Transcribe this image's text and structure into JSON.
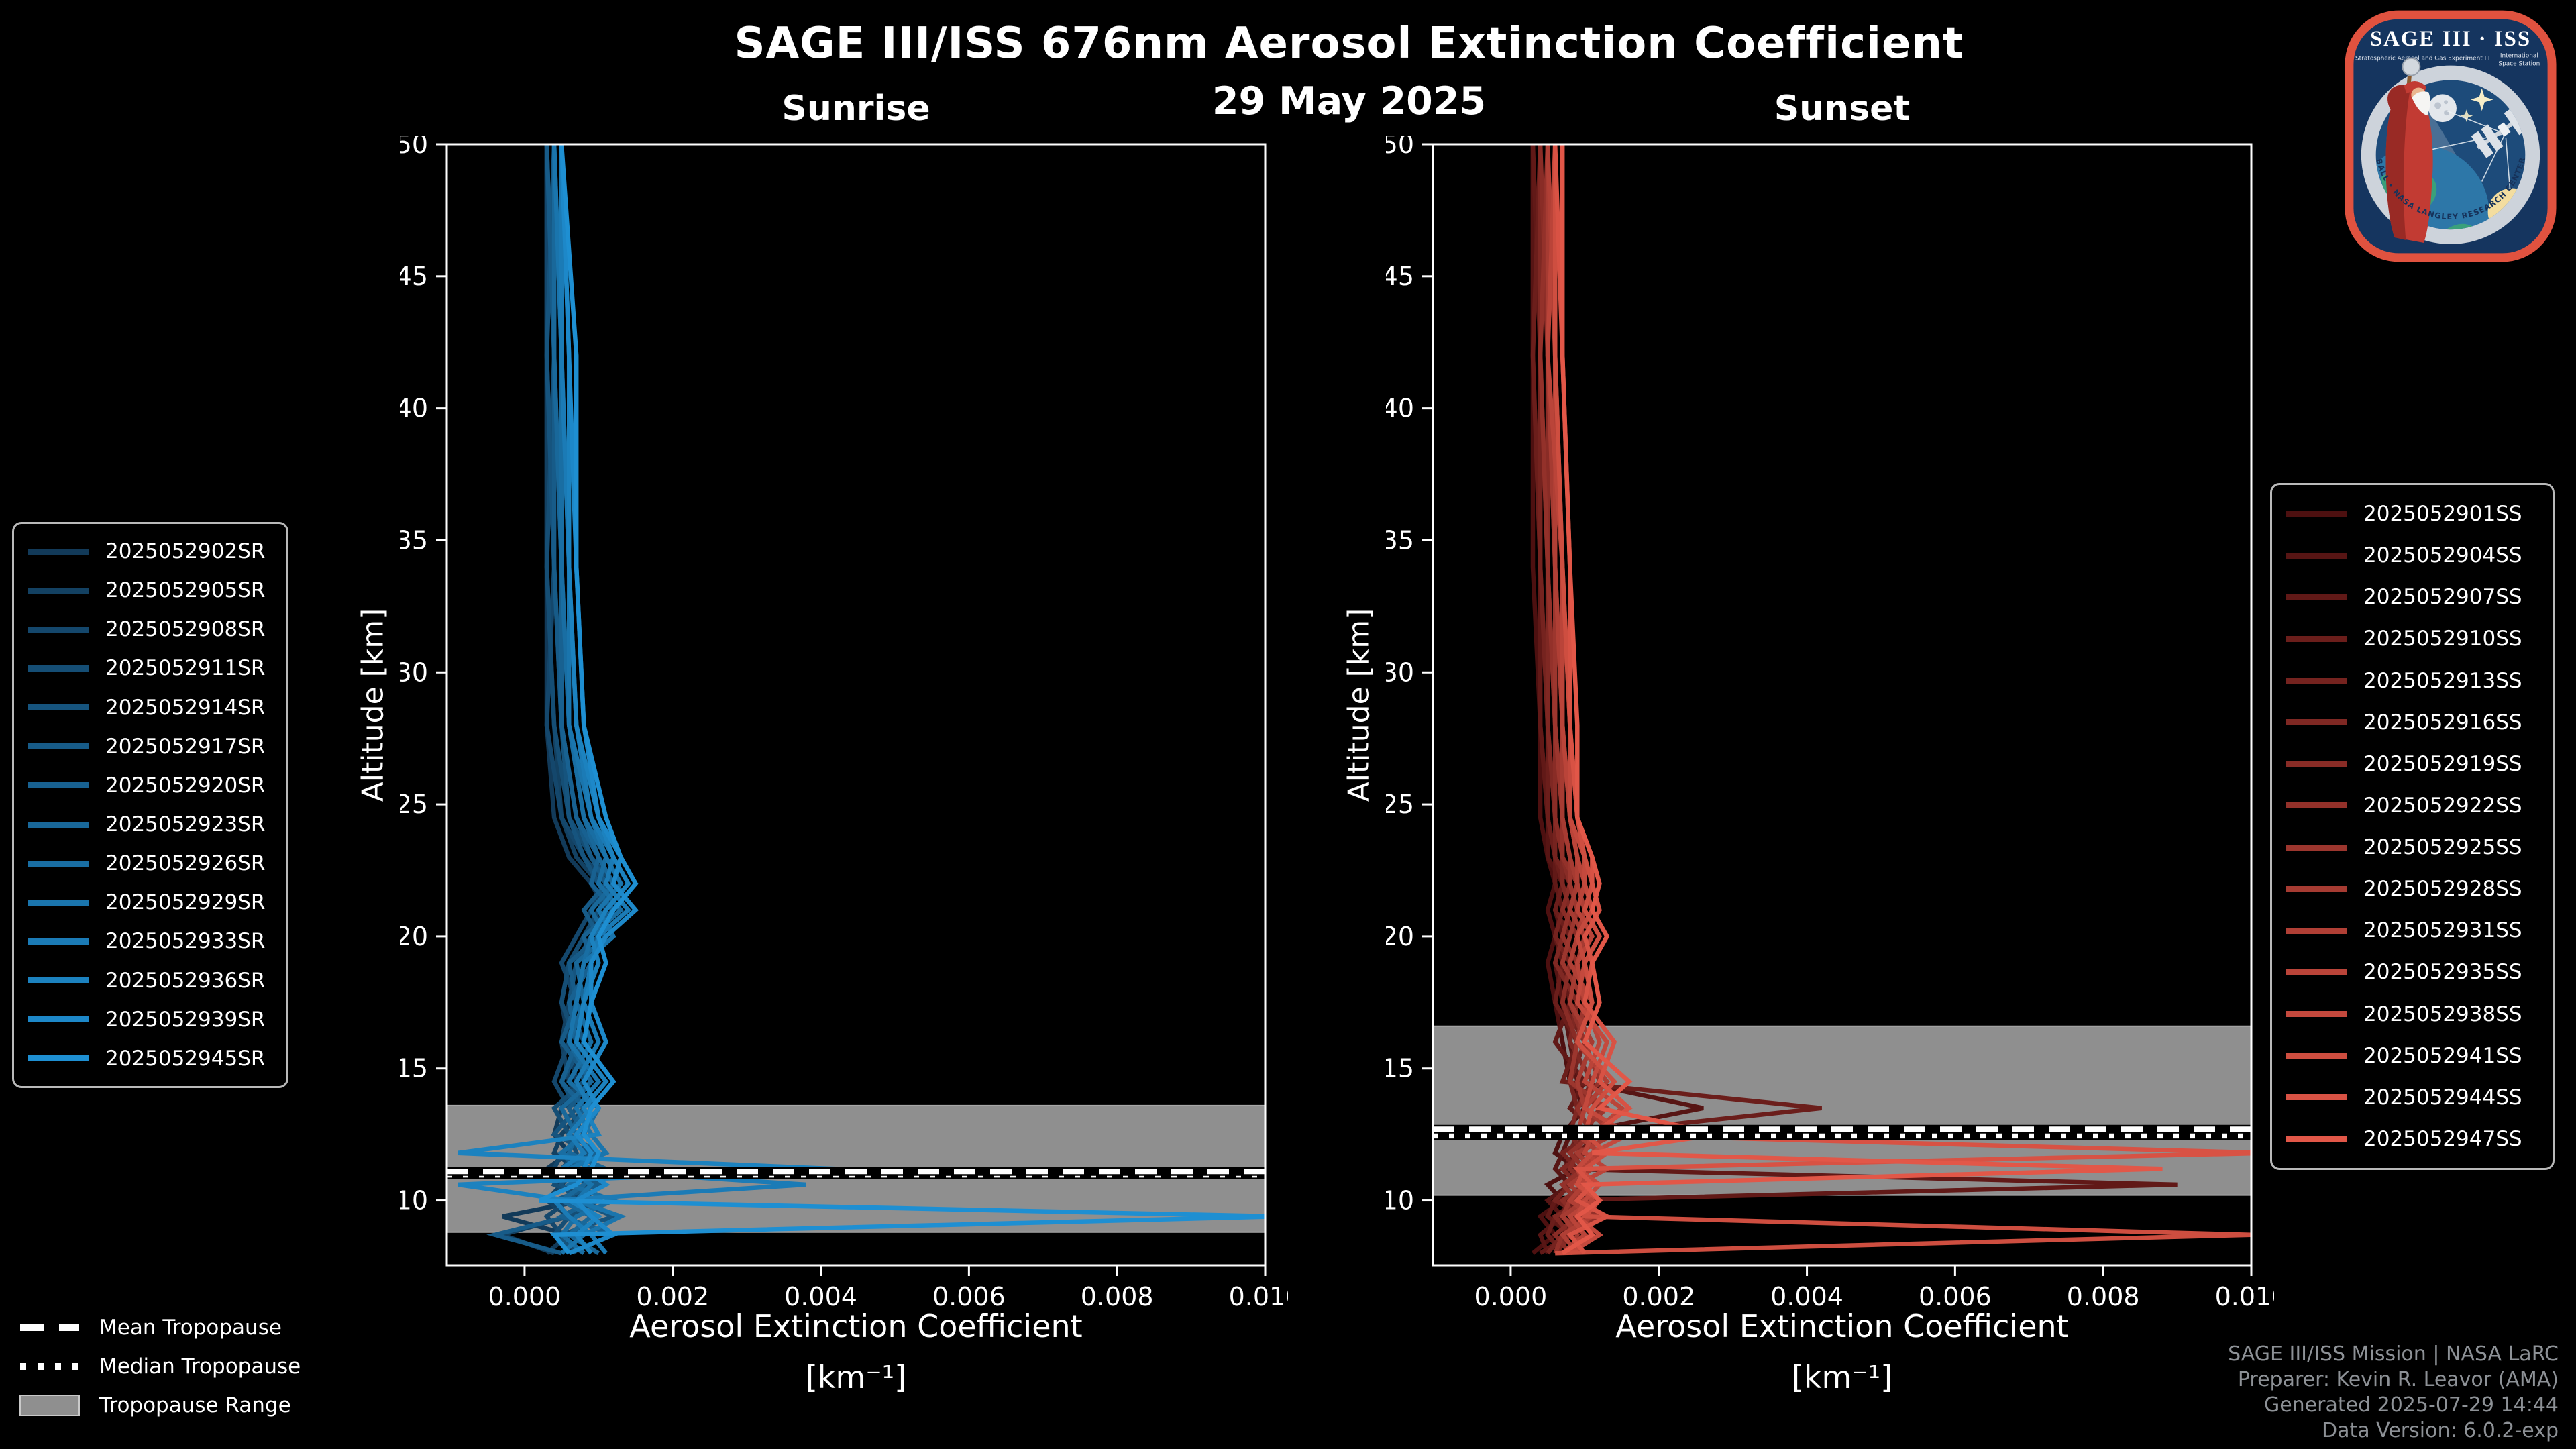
{
  "title": "SAGE III/ISS 676nm Aerosol Extinction Coefficient",
  "date_label": "29 May 2025",
  "colors": {
    "background": "#000000",
    "frame": "#ffffff",
    "tick": "#ffffff",
    "tick_label": "#ffffff",
    "band": "#8f8f8f",
    "band_edge": "#a8a8a8",
    "tropopause_line": "#ffffff",
    "tropopause_line_under": "#000000",
    "band_legend_fill": "#8f8f8f",
    "band_legend_edge": "#c9c9c9",
    "legend_border": "#b9b9b9",
    "footer_text": "#8d9196",
    "patch_border": "#e0523f",
    "patch_bg": "#15355f"
  },
  "chart_data": [
    {
      "type": "line",
      "panel": "sunrise",
      "subtitle": "Sunrise",
      "xlabel": "Aerosol Extinction Coefficient",
      "xlabel_units": "[km⁻¹]",
      "ylabel": "Altitude [km]",
      "xlim": [
        -0.00105,
        0.01
      ],
      "ylim": [
        7.55,
        50
      ],
      "xticks": [
        0,
        0.002,
        0.004,
        0.006,
        0.008,
        0.01
      ],
      "xtick_labels": [
        "0.000",
        "0.002",
        "0.004",
        "0.006",
        "0.008",
        "0.010"
      ],
      "yticks": [
        10,
        15,
        20,
        25,
        30,
        35,
        40,
        45,
        50
      ],
      "ext_units_note": "series ext values are aerosol extinction in units of 1e-4 km^-1 at each alt_nodes altitude",
      "alt_nodes": [
        50,
        42,
        34,
        28,
        24.5,
        23,
        22,
        21,
        20,
        19,
        17.5,
        16,
        14.5,
        13.5,
        12.5,
        11.8,
        11.2,
        10.6,
        10,
        9.4,
        8.7,
        8.0
      ],
      "tropopause": {
        "mean_km": 11.1,
        "median_km": 10.97,
        "range_km": [
          8.8,
          13.6
        ]
      },
      "series": [
        {
          "name": "2025052902SR",
          "color": "#123a59",
          "ext": [
            3,
            3,
            3,
            3,
            4,
            6,
            9,
            11,
            8,
            6,
            5,
            6,
            7,
            5,
            4,
            6,
            3,
            5,
            8,
            -3,
            6,
            3
          ]
        },
        {
          "name": "2025052905SR",
          "color": "#134162",
          "ext": [
            3,
            3,
            3,
            4,
            5,
            7,
            10,
            12,
            9,
            7,
            6,
            5,
            6,
            8,
            5,
            4,
            7,
            5,
            3,
            6,
            -3,
            4
          ]
        },
        {
          "name": "2025052908SR",
          "color": "#14476c",
          "ext": [
            3,
            3,
            4,
            3,
            5,
            8,
            11,
            9,
            7,
            5,
            7,
            6,
            4,
            6,
            8,
            5,
            4,
            9,
            6,
            3,
            5,
            7
          ]
        },
        {
          "name": "2025052911SR",
          "color": "#154e75",
          "ext": [
            3,
            4,
            3,
            4,
            6,
            9,
            12,
            10,
            8,
            6,
            5,
            7,
            8,
            4,
            6,
            7,
            5,
            4,
            10,
            6,
            4,
            8
          ]
        },
        {
          "name": "2025052914SR",
          "color": "#16547e",
          "ext": [
            4,
            3,
            4,
            5,
            6,
            8,
            10,
            13,
            9,
            7,
            6,
            8,
            5,
            7,
            4,
            9,
            6,
            5,
            7,
            12,
            5,
            6
          ]
        },
        {
          "name": "2025052917SR",
          "color": "#175b88",
          "ext": [
            3,
            4,
            4,
            5,
            7,
            9,
            11,
            8,
            10,
            6,
            7,
            5,
            9,
            6,
            8,
            5,
            7,
            10,
            4,
            6,
            -4,
            5
          ]
        },
        {
          "name": "2025052920SR",
          "color": "#186191",
          "ext": [
            4,
            4,
            5,
            5,
            7,
            10,
            9,
            12,
            8,
            9,
            6,
            7,
            5,
            8,
            6,
            10,
            5,
            7,
            9,
            5,
            12,
            6
          ]
        },
        {
          "name": "2025052923SR",
          "color": "#19689a",
          "ext": [
            4,
            4,
            5,
            6,
            8,
            10,
            12,
            9,
            11,
            7,
            8,
            6,
            9,
            5,
            7,
            6,
            11,
            8,
            5,
            9,
            6,
            10
          ]
        },
        {
          "name": "2025052926SR",
          "color": "#196ea3",
          "ext": [
            4,
            5,
            5,
            6,
            8,
            11,
            10,
            13,
            9,
            8,
            7,
            9,
            6,
            10,
            8,
            5,
            9,
            6,
            12,
            7,
            5,
            8
          ]
        },
        {
          "name": "2025052929SR",
          "color": "#1a75ad",
          "ext": [
            4,
            5,
            6,
            6,
            9,
            11,
            13,
            10,
            12,
            8,
            7,
            6,
            10,
            7,
            9,
            11,
            6,
            9,
            7,
            13,
            8,
            5
          ]
        },
        {
          "name": "2025052933SR",
          "color": "#1b7bb6",
          "ext": [
            5,
            5,
            6,
            7,
            9,
            12,
            11,
            14,
            10,
            9,
            8,
            10,
            7,
            9,
            6,
            8,
            5,
            38,
            4,
            6,
            9,
            11
          ]
        },
        {
          "name": "2025052936SR",
          "color": "#1c82bf",
          "ext": [
            5,
            6,
            6,
            7,
            10,
            12,
            14,
            11,
            9,
            10,
            8,
            7,
            11,
            8,
            10,
            -9,
            42,
            -9,
            6,
            10,
            7,
            9
          ]
        },
        {
          "name": "2025052939SR",
          "color": "#1d88c9",
          "ext": [
            5,
            6,
            7,
            8,
            10,
            13,
            12,
            15,
            11,
            9,
            9,
            11,
            8,
            10,
            7,
            9,
            8,
            11,
            7,
            9,
            12,
            6
          ]
        },
        {
          "name": "2025052945SR",
          "color": "#1e8fd2",
          "ext": [
            5,
            7,
            7,
            8,
            11,
            13,
            15,
            12,
            10,
            11,
            9,
            8,
            12,
            9,
            8,
            10,
            9,
            7,
            2,
            102,
            4,
            6
          ]
        }
      ]
    },
    {
      "type": "line",
      "panel": "sunset",
      "subtitle": "Sunset",
      "xlabel": "Aerosol Extinction Coefficient",
      "xlabel_units": "[km⁻¹]",
      "ylabel": "Altitude [km]",
      "xlim": [
        -0.00105,
        0.01
      ],
      "ylim": [
        7.55,
        50
      ],
      "xticks": [
        0,
        0.002,
        0.004,
        0.006,
        0.008,
        0.01
      ],
      "xtick_labels": [
        "0.000",
        "0.002",
        "0.004",
        "0.006",
        "0.008",
        "0.010"
      ],
      "yticks": [
        10,
        15,
        20,
        25,
        30,
        35,
        40,
        45,
        50
      ],
      "ext_units_note": "series ext values are aerosol extinction in units of 1e-4 km^-1 at each alt_nodes altitude",
      "alt_nodes": [
        50,
        42,
        34,
        28,
        24.5,
        23,
        22,
        21,
        20,
        19,
        17.5,
        16,
        14.5,
        13.5,
        12.5,
        11.8,
        11.2,
        10.6,
        10,
        9.4,
        8.7,
        8.0
      ],
      "tropopause": {
        "mean_km": 12.7,
        "median_km": 12.45,
        "range_km": [
          10.2,
          16.6
        ]
      },
      "series": [
        {
          "name": "2025052901SS",
          "color": "#4d1010",
          "ext": [
            3,
            3,
            3,
            4,
            4,
            5,
            6,
            5,
            6,
            5,
            6,
            7,
            8,
            10,
            7,
            6,
            9,
            5,
            7,
            4,
            6,
            3
          ]
        },
        {
          "name": "2025052904SS",
          "color": "#571514",
          "ext": [
            3,
            3,
            4,
            4,
            5,
            5,
            7,
            6,
            7,
            6,
            7,
            8,
            9,
            26,
            8,
            7,
            6,
            8,
            5,
            7,
            4,
            5
          ]
        },
        {
          "name": "2025052907SS",
          "color": "#611917",
          "ext": [
            3,
            4,
            4,
            4,
            5,
            6,
            6,
            7,
            6,
            7,
            8,
            6,
            10,
            8,
            12,
            9,
            7,
            90,
            6,
            5,
            8,
            4
          ]
        },
        {
          "name": "2025052910SS",
          "color": "#6b1e1b",
          "ext": [
            4,
            3,
            4,
            5,
            5,
            6,
            7,
            6,
            8,
            7,
            6,
            9,
            7,
            42,
            9,
            8,
            10,
            7,
            9,
            6,
            5,
            7
          ]
        },
        {
          "name": "2025052913SS",
          "color": "#75231f",
          "ext": [
            4,
            4,
            4,
            5,
            6,
            6,
            8,
            7,
            6,
            8,
            7,
            10,
            8,
            9,
            11,
            7,
            9,
            8,
            6,
            10,
            7,
            5
          ]
        },
        {
          "name": "2025052916SS",
          "color": "#7f2823",
          "ext": [
            4,
            4,
            5,
            5,
            6,
            7,
            7,
            8,
            7,
            6,
            9,
            8,
            11,
            9,
            8,
            10,
            7,
            9,
            11,
            6,
            8,
            6
          ]
        },
        {
          "name": "2025052919SS",
          "color": "#892c26",
          "ext": [
            4,
            5,
            5,
            6,
            6,
            7,
            8,
            7,
            9,
            8,
            7,
            9,
            8,
            12,
            10,
            9,
            8,
            10,
            7,
            9,
            6,
            8
          ]
        },
        {
          "name": "2025052922SS",
          "color": "#93312a",
          "ext": [
            5,
            4,
            5,
            6,
            7,
            7,
            9,
            8,
            7,
            9,
            8,
            10,
            12,
            9,
            11,
            8,
            10,
            7,
            9,
            12,
            7,
            6
          ]
        },
        {
          "name": "2025052925SS",
          "color": "#9c362e",
          "ext": [
            5,
            5,
            6,
            6,
            7,
            8,
            8,
            9,
            8,
            7,
            10,
            9,
            8,
            13,
            9,
            12,
            9,
            11,
            8,
            7,
            10,
            7
          ]
        },
        {
          "name": "2025052928SS",
          "color": "#a63b32",
          "ext": [
            5,
            5,
            6,
            7,
            7,
            8,
            9,
            8,
            10,
            9,
            8,
            11,
            9,
            10,
            14,
            9,
            11,
            8,
            10,
            7,
            9,
            8
          ]
        },
        {
          "name": "2025052931SS",
          "color": "#b03f35",
          "ext": [
            5,
            6,
            6,
            7,
            8,
            9,
            9,
            10,
            9,
            8,
            11,
            9,
            13,
            10,
            9,
            12,
            9,
            10,
            8,
            11,
            7,
            9
          ]
        },
        {
          "name": "2025052935SS",
          "color": "#ba4439",
          "ext": [
            6,
            5,
            7,
            7,
            8,
            9,
            10,
            9,
            11,
            9,
            10,
            12,
            10,
            15,
            11,
            10,
            13,
            9,
            11,
            8,
            10,
            7
          ]
        },
        {
          "name": "2025052938SS",
          "color": "#c4493d",
          "ext": [
            6,
            6,
            7,
            8,
            8,
            10,
            10,
            11,
            9,
            10,
            9,
            13,
            11,
            10,
            16,
            11,
            9,
            12,
            10,
            9,
            12,
            8
          ]
        },
        {
          "name": "2025052941SS",
          "color": "#ce4e40",
          "ext": [
            6,
            6,
            7,
            8,
            9,
            10,
            11,
            10,
            12,
            10,
            11,
            9,
            14,
            11,
            10,
            13,
            10,
            9,
            12,
            10,
            100,
            6
          ]
        },
        {
          "name": "2025052944SS",
          "color": "#d85244",
          "ext": [
            6,
            7,
            8,
            8,
            9,
            11,
            11,
            12,
            10,
            11,
            10,
            14,
            12,
            16,
            11,
            102,
            9,
            11,
            9,
            13,
            8,
            10
          ]
        },
        {
          "name": "2025052947SS",
          "color": "#e25748",
          "ext": [
            7,
            7,
            8,
            9,
            9,
            11,
            12,
            11,
            13,
            11,
            12,
            10,
            16,
            12,
            28,
            11,
            88,
            10,
            12,
            9,
            11,
            7
          ]
        }
      ]
    }
  ],
  "tropopause_legend": [
    {
      "label": "Mean Tropopause",
      "style": "dashed"
    },
    {
      "label": "Median Tropopause",
      "style": "dotted"
    },
    {
      "label": "Tropopause Range",
      "style": "band"
    }
  ],
  "footer": {
    "lines": [
      "SAGE III/ISS Mission | NASA LaRC",
      "Preparer: Kevin R. Leavor (AMA)",
      "Generated 2025-07-29 14:44",
      "Data Version: 6.0.2-exp"
    ]
  },
  "logo": {
    "title": "SAGE III · ISS",
    "subtitle_left": "Stratospheric Aerosol and Gas Experiment III",
    "subtitle_right1": "International",
    "subtitle_right2": "Space Station",
    "ring_text": "BALL • NASA LANGLEY RESEARCH CENTER • TAS-I • ESA"
  }
}
